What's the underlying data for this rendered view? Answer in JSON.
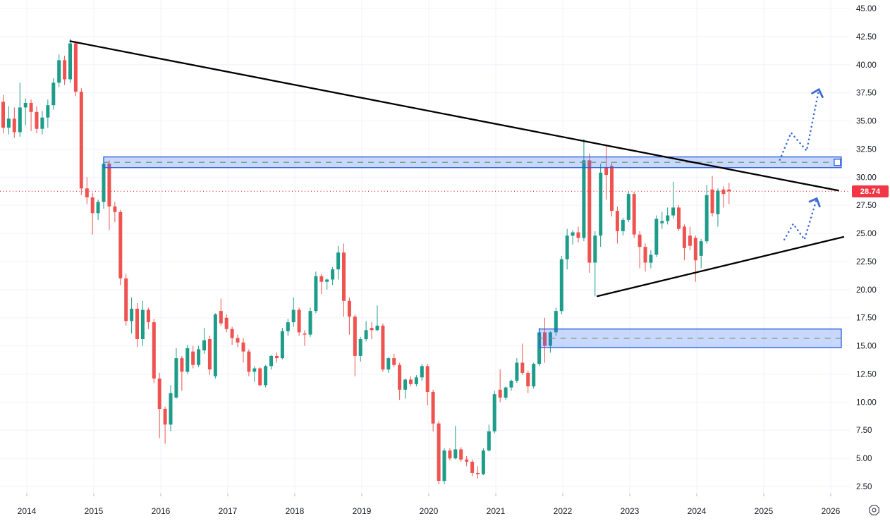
{
  "price_axis": {
    "last_price_label": "28.74",
    "labels": [
      "45.00",
      "42.50",
      "40.00",
      "37.50",
      "35.00",
      "32.50",
      "30.00",
      "27.50",
      "25.00",
      "22.50",
      "20.00",
      "17.50",
      "15.00",
      "12.50",
      "10.00",
      "7.50",
      "5.00",
      "2.50"
    ]
  },
  "time_axis": {
    "labels": [
      "2014",
      "2015",
      "2016",
      "2017",
      "2018",
      "2019",
      "2020",
      "2021",
      "2022",
      "2023",
      "2024",
      "2025",
      "2026"
    ]
  },
  "controls": {
    "settings_icon": "gear-octagon"
  },
  "chart_data": {
    "type": "candlestick",
    "x_unit": "month",
    "ylim": [
      2.5,
      45
    ],
    "grid": true,
    "style": {
      "up": "#1e9c8a",
      "down": "#ef5350",
      "grid": "#f0f3fa",
      "axis_text": "#131722",
      "tick": "#b2b5be",
      "trendline": "#000000",
      "zone_fill": "#2962ff",
      "zone_fill_opacity": 0.25,
      "zone_border": "#2f62d9",
      "zone_midline": "#6f9e6f",
      "projection": "#3e6bd6",
      "price_line": "#f23645"
    },
    "last_price": 28.74,
    "candles": [
      [
        "2013-09",
        36.7,
        37.3,
        33.9,
        34.4
      ],
      [
        "2013-10",
        34.4,
        36.3,
        33.8,
        35.2
      ],
      [
        "2013-11",
        35.2,
        36.2,
        33.5,
        34.0
      ],
      [
        "2013-12",
        34.0,
        38.4,
        33.6,
        36.2
      ],
      [
        "2014-01",
        36.2,
        37.0,
        34.6,
        36.6
      ],
      [
        "2014-02",
        36.6,
        36.9,
        34.1,
        35.8
      ],
      [
        "2014-03",
        35.8,
        36.3,
        33.9,
        34.3
      ],
      [
        "2014-04",
        34.3,
        35.9,
        33.8,
        35.3
      ],
      [
        "2014-05",
        35.3,
        36.9,
        34.4,
        36.4
      ],
      [
        "2014-06",
        36.4,
        38.8,
        36.0,
        38.4
      ],
      [
        "2014-07",
        38.4,
        40.9,
        38.0,
        40.4
      ],
      [
        "2014-08",
        40.4,
        40.8,
        38.2,
        38.7
      ],
      [
        "2014-09",
        38.7,
        42.3,
        38.4,
        41.9
      ],
      [
        "2014-10",
        41.9,
        42.1,
        37.2,
        37.6
      ],
      [
        "2014-11",
        37.6,
        37.9,
        28.4,
        29.0
      ],
      [
        "2014-12",
        29.0,
        30.0,
        27.6,
        28.2
      ],
      [
        "2015-01",
        28.2,
        28.6,
        24.9,
        26.8
      ],
      [
        "2015-02",
        26.8,
        28.0,
        26.2,
        27.8
      ],
      [
        "2015-03",
        27.8,
        31.6,
        27.2,
        31.2
      ],
      [
        "2015-04",
        31.2,
        31.5,
        25.3,
        27.4
      ],
      [
        "2015-05",
        27.4,
        27.8,
        26.0,
        26.9
      ],
      [
        "2015-06",
        26.9,
        27.1,
        20.4,
        21.0
      ],
      [
        "2015-07",
        21.0,
        21.4,
        16.8,
        17.2
      ],
      [
        "2015-08",
        17.2,
        19.3,
        16.1,
        18.3
      ],
      [
        "2015-09",
        18.3,
        18.8,
        14.9,
        15.6
      ],
      [
        "2015-10",
        15.6,
        19.0,
        15.0,
        18.2
      ],
      [
        "2015-11",
        18.2,
        18.4,
        16.5,
        17.1
      ],
      [
        "2015-12",
        17.1,
        17.4,
        11.7,
        12.1
      ],
      [
        "2016-01",
        12.1,
        12.6,
        6.8,
        9.4
      ],
      [
        "2016-02",
        9.4,
        9.6,
        6.3,
        8.0
      ],
      [
        "2016-03",
        8.0,
        11.5,
        7.4,
        10.8
      ],
      [
        "2016-04",
        10.4,
        14.8,
        10.3,
        13.9
      ],
      [
        "2016-05",
        13.9,
        14.1,
        11.0,
        12.7
      ],
      [
        "2016-06",
        12.7,
        15.1,
        12.5,
        14.8
      ],
      [
        "2016-07",
        14.5,
        15.0,
        13.0,
        13.3
      ],
      [
        "2016-08",
        13.3,
        15.0,
        13.1,
        14.7
      ],
      [
        "2016-09",
        14.6,
        16.6,
        14.3,
        15.5
      ],
      [
        "2016-10",
        15.6,
        15.9,
        12.4,
        12.9
      ],
      [
        "2016-11",
        12.3,
        17.9,
        12.1,
        17.8
      ],
      [
        "2016-12",
        18.1,
        19.2,
        16.8,
        17.0
      ],
      [
        "2017-01",
        17.5,
        17.8,
        16.2,
        16.5
      ],
      [
        "2017-02",
        16.5,
        16.7,
        15.1,
        15.7
      ],
      [
        "2017-03",
        15.7,
        16.0,
        14.9,
        15.3
      ],
      [
        "2017-04",
        15.3,
        15.7,
        13.5,
        14.5
      ],
      [
        "2017-05",
        14.5,
        14.7,
        12.3,
        12.7
      ],
      [
        "2017-06",
        12.7,
        13.2,
        11.8,
        13.0
      ],
      [
        "2017-07",
        13.0,
        13.1,
        11.4,
        11.5
      ],
      [
        "2017-08",
        11.5,
        13.3,
        11.3,
        13.2
      ],
      [
        "2017-09",
        13.2,
        14.2,
        12.9,
        14.1
      ],
      [
        "2017-10",
        14.1,
        14.4,
        13.5,
        13.9
      ],
      [
        "2017-11",
        13.9,
        16.6,
        13.8,
        16.3
      ],
      [
        "2017-12",
        16.3,
        17.4,
        15.9,
        17.1
      ],
      [
        "2018-01",
        17.1,
        19.3,
        16.7,
        18.2
      ],
      [
        "2018-02",
        18.2,
        18.4,
        15.9,
        16.2
      ],
      [
        "2018-03",
        16.1,
        16.4,
        15.0,
        16.0
      ],
      [
        "2018-04",
        16.0,
        18.4,
        15.8,
        18.1
      ],
      [
        "2018-05",
        18.1,
        21.6,
        17.9,
        21.2
      ],
      [
        "2018-06",
        21.2,
        21.4,
        19.6,
        20.7
      ],
      [
        "2018-07",
        20.7,
        21.0,
        20.0,
        20.9
      ],
      [
        "2018-08",
        20.9,
        22.0,
        20.4,
        21.8
      ],
      [
        "2018-09",
        21.8,
        23.9,
        20.9,
        23.3
      ],
      [
        "2018-10",
        23.3,
        24.1,
        17.6,
        19.0
      ],
      [
        "2018-11",
        19.0,
        19.3,
        16.0,
        17.6
      ],
      [
        "2018-12",
        17.6,
        17.8,
        12.3,
        14.1
      ],
      [
        "2019-01",
        14.1,
        15.8,
        13.6,
        15.6
      ],
      [
        "2019-02",
        15.6,
        17.2,
        15.4,
        16.4
      ],
      [
        "2019-03",
        16.6,
        17.1,
        15.6,
        16.4
      ],
      [
        "2019-04",
        16.4,
        18.6,
        16.3,
        16.8
      ],
      [
        "2019-05",
        16.8,
        17.0,
        12.7,
        12.9
      ],
      [
        "2019-06",
        12.9,
        14.0,
        12.6,
        13.9
      ],
      [
        "2019-07",
        13.9,
        14.3,
        13.1,
        13.3
      ],
      [
        "2019-08",
        13.3,
        13.5,
        10.2,
        11.1
      ],
      [
        "2019-09",
        11.1,
        12.1,
        10.3,
        12.0
      ],
      [
        "2019-10",
        12.0,
        12.3,
        11.4,
        11.6
      ],
      [
        "2019-11",
        11.6,
        12.4,
        11.4,
        12.2
      ],
      [
        "2019-12",
        12.2,
        13.4,
        11.9,
        13.2
      ],
      [
        "2020-01",
        13.2,
        13.4,
        9.7,
        10.9
      ],
      [
        "2020-02",
        10.9,
        11.1,
        7.4,
        8.1
      ],
      [
        "2020-03",
        8.1,
        8.3,
        2.7,
        3.0
      ],
      [
        "2020-04",
        3.0,
        5.9,
        2.7,
        5.7
      ],
      [
        "2020-05",
        5.7,
        5.9,
        4.8,
        5.0
      ],
      [
        "2020-06",
        5.0,
        7.9,
        4.9,
        5.8
      ],
      [
        "2020-07",
        5.8,
        6.0,
        4.7,
        4.9
      ],
      [
        "2020-08",
        4.9,
        5.2,
        4.3,
        4.7
      ],
      [
        "2020-09",
        4.7,
        4.9,
        3.4,
        3.7
      ],
      [
        "2020-10",
        3.7,
        4.3,
        3.2,
        3.6
      ],
      [
        "2020-11",
        3.6,
        5.9,
        3.5,
        5.7
      ],
      [
        "2020-12",
        5.7,
        8.0,
        5.6,
        7.4
      ],
      [
        "2021-01",
        7.4,
        11.0,
        7.2,
        10.7
      ],
      [
        "2021-02",
        11.1,
        12.9,
        10.0,
        10.4
      ],
      [
        "2021-03",
        10.4,
        11.4,
        10.2,
        11.3
      ],
      [
        "2021-04",
        11.3,
        12.0,
        11.0,
        11.9
      ],
      [
        "2021-05",
        11.9,
        13.9,
        11.7,
        13.5
      ],
      [
        "2021-06",
        13.5,
        15.2,
        12.4,
        12.6
      ],
      [
        "2021-07",
        12.6,
        12.8,
        10.8,
        11.4
      ],
      [
        "2021-08",
        11.4,
        13.5,
        11.2,
        13.4
      ],
      [
        "2021-09",
        13.4,
        16.6,
        13.2,
        16.2
      ],
      [
        "2021-10",
        16.2,
        17.5,
        13.5,
        15.0
      ],
      [
        "2021-11",
        15.0,
        16.3,
        14.4,
        16.2
      ],
      [
        "2021-12",
        16.2,
        18.4,
        15.9,
        18.1
      ],
      [
        "2022-01",
        18.1,
        23.0,
        17.8,
        22.7
      ],
      [
        "2022-02",
        22.7,
        25.4,
        21.8,
        24.8
      ],
      [
        "2022-03",
        24.8,
        25.3,
        24.0,
        25.1
      ],
      [
        "2022-04",
        25.1,
        25.6,
        24.2,
        24.6
      ],
      [
        "2022-05",
        24.6,
        33.4,
        24.3,
        31.5
      ],
      [
        "2022-06",
        31.5,
        32.1,
        21.5,
        22.4
      ],
      [
        "2022-07",
        22.4,
        25.2,
        19.4,
        24.8
      ],
      [
        "2022-08",
        24.8,
        31.2,
        23.8,
        30.4
      ],
      [
        "2022-09",
        30.9,
        32.9,
        28.0,
        30.2
      ],
      [
        "2022-10",
        31.0,
        31.3,
        26.5,
        27.0
      ],
      [
        "2022-11",
        27.0,
        27.4,
        24.1,
        25.2
      ],
      [
        "2022-12",
        25.2,
        26.4,
        24.8,
        26.2
      ],
      [
        "2023-01",
        26.2,
        28.7,
        26.0,
        28.5
      ],
      [
        "2023-02",
        28.5,
        28.7,
        24.6,
        24.9
      ],
      [
        "2023-03",
        24.9,
        25.2,
        21.9,
        23.8
      ],
      [
        "2023-04",
        23.8,
        24.1,
        21.6,
        22.4
      ],
      [
        "2023-05",
        22.4,
        23.5,
        21.9,
        23.1
      ],
      [
        "2023-06",
        23.1,
        26.6,
        22.9,
        26.3
      ],
      [
        "2023-07",
        25.9,
        26.9,
        25.4,
        26.1
      ],
      [
        "2023-08",
        26.1,
        27.3,
        25.8,
        26.6
      ],
      [
        "2023-09",
        26.6,
        29.6,
        26.3,
        27.3
      ],
      [
        "2023-10",
        27.3,
        27.5,
        25.2,
        25.4
      ],
      [
        "2023-11",
        25.6,
        25.8,
        22.6,
        23.7
      ],
      [
        "2023-12",
        24.8,
        25.6,
        23.5,
        23.9
      ],
      [
        "2024-01",
        24.6,
        24.8,
        20.7,
        22.6
      ],
      [
        "2024-02",
        23.0,
        24.5,
        21.9,
        24.3
      ],
      [
        "2024-03",
        24.3,
        29.3,
        24.1,
        28.4
      ],
      [
        "2024-04",
        28.9,
        30.1,
        26.5,
        26.8
      ],
      [
        "2024-05",
        26.7,
        29.0,
        25.6,
        28.8
      ],
      [
        "2024-06",
        28.9,
        29.2,
        27.3,
        28.5
      ],
      [
        "2024-07",
        28.9,
        29.5,
        27.6,
        28.74
      ]
    ],
    "overlays": {
      "zones": [
        {
          "name": "upper-supply-zone",
          "xi_start": 18.0,
          "xi_end": 150.1,
          "top": 31.8,
          "bottom": 30.85,
          "midline": 31.32
        },
        {
          "name": "lower-demand-zone",
          "xi_start": 96.0,
          "xi_end": 150.1,
          "top": 16.5,
          "bottom": 14.85,
          "midline": 15.68
        }
      ],
      "trendlines": [
        {
          "name": "descending-resistance",
          "from": {
            "xi": 11.9,
            "price": 42.1
          },
          "to": {
            "xi": 149.7,
            "price": 28.8
          }
        },
        {
          "name": "ascending-support",
          "from": {
            "xi": 106.3,
            "price": 19.4
          },
          "to": {
            "xi": 150.6,
            "price": 24.7
          }
        }
      ],
      "projections": [
        {
          "name": "upper-projection-arrow",
          "points": [
            {
              "xi": 139.1,
              "price": 31.55
            },
            {
              "xi": 141.1,
              "price": 33.95
            },
            {
              "xi": 143.9,
              "price": 32.35
            },
            {
              "xi": 146.1,
              "price": 37.8
            }
          ]
        },
        {
          "name": "lower-projection-arrow",
          "points": [
            {
              "xi": 139.9,
              "price": 24.45
            },
            {
              "xi": 141.5,
              "price": 25.85
            },
            {
              "xi": 143.5,
              "price": 24.45
            },
            {
              "xi": 145.7,
              "price": 28.1
            }
          ]
        }
      ],
      "zone_handle": {
        "xi": 149.4,
        "price": 31.32
      }
    }
  }
}
